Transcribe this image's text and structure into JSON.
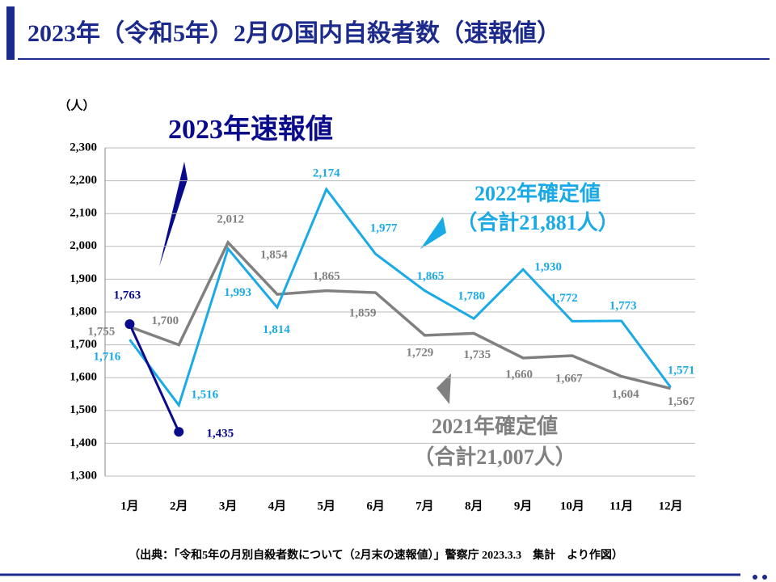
{
  "chart_data": {
    "type": "line",
    "title": "2023年（令和5年）2月の国内自殺者数（速報値）",
    "y_label": "（人）",
    "source": "（出典：「令和5年の月別自殺者数について（2月末の速報値）」警察庁 2023.3.3　集計　より作図）",
    "categories": [
      "1月",
      "2月",
      "3月",
      "4月",
      "5月",
      "6月",
      "7月",
      "8月",
      "9月",
      "10月",
      "11月",
      "12月"
    ],
    "ylim": [
      1300,
      2300
    ],
    "yticks": [
      {
        "value": 1300,
        "label": "1,300"
      },
      {
        "value": 1400,
        "label": "1,400"
      },
      {
        "value": 1500,
        "label": "1,500"
      },
      {
        "value": 1600,
        "label": "1,600"
      },
      {
        "value": 1700,
        "label": "1,700"
      },
      {
        "value": 1800,
        "label": "1,800"
      },
      {
        "value": 1900,
        "label": "1,900"
      },
      {
        "value": 2000,
        "label": "2,000"
      },
      {
        "value": 2100,
        "label": "2,100"
      },
      {
        "value": 2200,
        "label": "2,200"
      },
      {
        "value": 2300,
        "label": "2,300"
      }
    ],
    "grid": true,
    "series": [
      {
        "name": "2021年確定値",
        "total_label": "（合計21,007人）",
        "color": "#808080",
        "values": [
          1755,
          1700,
          2012,
          1854,
          1865,
          1859,
          1729,
          1735,
          1660,
          1667,
          1604,
          1567
        ],
        "value_labels": [
          "1,755",
          "1,700",
          "2,012",
          "1,854",
          "1,865",
          "1,859",
          "1,729",
          "1,735",
          "1,660",
          "1,667",
          "1,604",
          "1,567"
        ]
      },
      {
        "name": "2022年確定値",
        "total_label": "（合計21,881人）",
        "color": "#1aaae6",
        "values": [
          1716,
          1516,
          1993,
          1814,
          2174,
          1977,
          1865,
          1780,
          1930,
          1772,
          1773,
          1571
        ],
        "value_labels": [
          "1,716",
          "1,516",
          "1,993",
          "1,814",
          "2,174",
          "1,977",
          "1,865",
          "1,780",
          "1,930",
          "1,772",
          "1,773",
          "1,571"
        ]
      },
      {
        "name": "2023年速報値",
        "color": "#0a0a8c",
        "values": [
          1763,
          1435,
          null,
          null,
          null,
          null,
          null,
          null,
          null,
          null,
          null,
          null
        ],
        "value_labels": [
          "1,763",
          "1,435",
          null,
          null,
          null,
          null,
          null,
          null,
          null,
          null,
          null,
          null
        ]
      }
    ]
  }
}
